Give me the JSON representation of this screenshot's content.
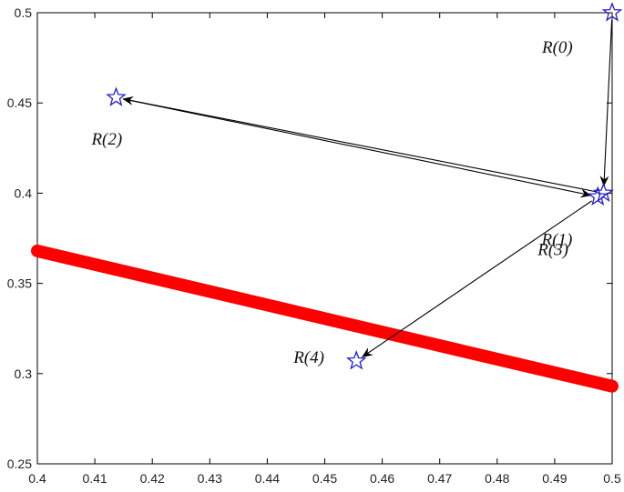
{
  "chart_data": {
    "type": "scatter",
    "title": "",
    "xlabel": "",
    "ylabel": "",
    "xlim": [
      0.4,
      0.5
    ],
    "ylim": [
      0.25,
      0.5
    ],
    "x_ticks": [
      "0.4",
      "0.41",
      "0.42",
      "0.43",
      "0.44",
      "0.45",
      "0.46",
      "0.47",
      "0.48",
      "0.49",
      "0.5"
    ],
    "y_ticks": [
      "0.25",
      "0.3",
      "0.35",
      "0.4",
      "0.45",
      "0.5"
    ],
    "grid": false,
    "line": {
      "x": [
        0.4,
        0.5
      ],
      "y": [
        0.368,
        0.293
      ],
      "color": "#ff0000"
    },
    "points": [
      {
        "label": "R(0)",
        "x": 0.5,
        "y": 0.5
      },
      {
        "label": "R(1)",
        "x": 0.4985,
        "y": 0.4
      },
      {
        "label": "R(2)",
        "x": 0.4137,
        "y": 0.453
      },
      {
        "label": "R(3)",
        "x": 0.4975,
        "y": 0.398
      },
      {
        "label": "R(4)",
        "x": 0.4555,
        "y": 0.307
      }
    ],
    "arrows": [
      {
        "from": [
          0.5,
          0.5
        ],
        "to": [
          0.4985,
          0.4
        ]
      },
      {
        "from": [
          0.4985,
          0.4
        ],
        "to": [
          0.4137,
          0.453
        ]
      },
      {
        "from": [
          0.4137,
          0.453
        ],
        "to": [
          0.4975,
          0.398
        ]
      },
      {
        "from": [
          0.4975,
          0.398
        ],
        "to": [
          0.4555,
          0.307
        ]
      }
    ],
    "marker_color": "#1f1fcc",
    "arrow_color": "#000000"
  }
}
